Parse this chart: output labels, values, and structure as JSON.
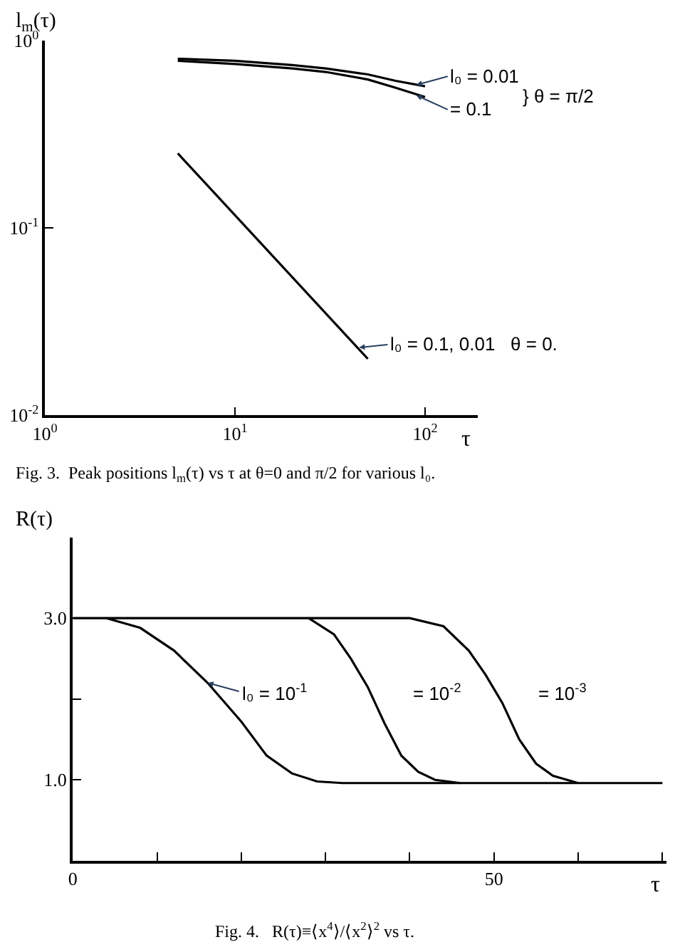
{
  "chart_data": [
    {
      "type": "line",
      "ylabel": "l$_{m}$(τ)",
      "xlabel": "τ",
      "log": "xy",
      "marker": "none",
      "line_style": "solid",
      "xlim": [
        1,
        190
      ],
      "xticks": [
        {
          "value": 1,
          "label": "10$^{0}$"
        },
        {
          "value": 10,
          "label": "10$^{1}$"
        },
        {
          "value": 100,
          "label": "10$^{2}$"
        }
      ],
      "ylim": [
        0.01,
        1
      ],
      "yticks": [
        {
          "value": 0.01,
          "label": "10$^{-2}$"
        },
        {
          "value": 0.1,
          "label": "10$^{-1}$"
        },
        {
          "value": 1,
          "label": "10$^{0}$"
        }
      ],
      "series": [
        {
          "color": "#000000",
          "x": [
            5,
            10,
            20,
            30,
            50,
            70,
            100
          ],
          "values": [
            0.8,
            0.78,
            0.74,
            0.71,
            0.66,
            0.61,
            0.57
          ]
        },
        {
          "color": "#000000",
          "x": [
            5,
            10,
            20,
            30,
            50,
            70,
            100
          ],
          "values": [
            0.78,
            0.75,
            0.71,
            0.68,
            0.62,
            0.56,
            0.5
          ]
        },
        {
          "color": "#000000",
          "x": [
            5,
            50
          ],
          "values": [
            0.25,
            0.02
          ]
        }
      ],
      "annotations": [
        {
          "text": "l₀ = 0.01",
          "x": 90,
          "y": 0.58
        },
        {
          "text": "= 0.1",
          "x": 90,
          "y": 0.51
        },
        "} θ = π/2",
        {
          "text": "l₀ = 0.1, 0.01   θ = 0.",
          "x": 45,
          "y": 0.023
        },
        "Fig. 3.  Peak positions l$_{m}$(τ) vs τ at θ=0 and π/2 for various l₀."
      ]
    },
    {
      "type": "line",
      "ylabel": "R(τ)",
      "xlabel": "τ",
      "marker": "none",
      "line_style": "solid",
      "xlim": [
        0,
        70.5
      ],
      "xticks": [
        0,
        {
          "value": 10,
          "label": null
        },
        {
          "value": 20,
          "label": null
        },
        {
          "value": 30,
          "label": null
        },
        {
          "value": 40,
          "label": null
        },
        50,
        {
          "value": 60,
          "label": null
        },
        {
          "value": 70,
          "label": null
        }
      ],
      "ylim": [
        0,
        4
      ],
      "yticks": [
        {
          "value": 1,
          "label": "1.0"
        },
        {
          "value": 2,
          "label": null
        },
        {
          "value": 3,
          "label": "3.0"
        }
      ],
      "series": [
        {
          "color": "#000000",
          "x": [
            4,
            8,
            12,
            16,
            20,
            23,
            26,
            29,
            32,
            46
          ],
          "values": [
            3.0,
            2.88,
            2.6,
            2.2,
            1.72,
            1.3,
            1.08,
            0.98,
            0.96,
            0.96
          ]
        },
        {
          "color": "#000000",
          "x": [
            28,
            31,
            33,
            35,
            37,
            39,
            41,
            43,
            46,
            70
          ],
          "values": [
            3.0,
            2.8,
            2.5,
            2.15,
            1.7,
            1.3,
            1.1,
            1.0,
            0.96,
            0.96
          ]
        },
        {
          "color": "#000000",
          "x": [
            0,
            40,
            44,
            47,
            49,
            51,
            53,
            55,
            57,
            60
          ],
          "values": [
            3.0,
            3.0,
            2.9,
            2.6,
            2.3,
            1.95,
            1.5,
            1.2,
            1.05,
            0.96
          ]
        }
      ],
      "annotations": [
        {
          "text": "l₀ = 10$^{-1}$",
          "x": 16,
          "y": 2.2
        },
        "= 10$^{-2}$",
        "= 10$^{-3}$",
        "Fig. 4.   R(τ)≡⟨x$^{4}$⟩/⟨x$^{2}$⟩$^{2}$ vs τ."
      ]
    }
  ]
}
